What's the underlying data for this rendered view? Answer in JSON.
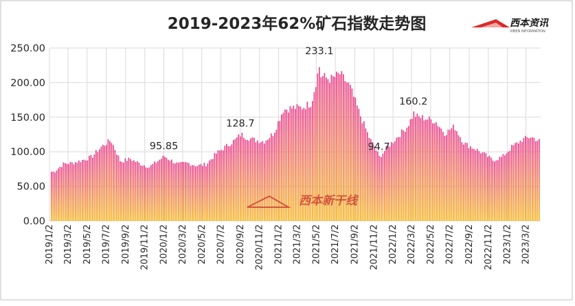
{
  "chart_data": {
    "type": "bar",
    "title": "2019-2023年62%矿石指数走势图",
    "logo_text": "西本资讯",
    "logo_subtext": "XIBEN INFORMATION",
    "watermark_text": "西本新干线",
    "xlabel": "",
    "ylabel": "",
    "ylim": [
      0,
      250
    ],
    "y_ticks": [
      "0.00",
      "50.00",
      "100.00",
      "150.00",
      "200.00",
      "250.00"
    ],
    "x_tick_labels": [
      "2019/1/2",
      "2019/3/2",
      "2019/5/2",
      "2019/7/2",
      "2019/9/2",
      "2019/11/2",
      "2020/1/2",
      "2020/3/2",
      "2020/5/2",
      "2020/7/2",
      "2020/9/2",
      "2020/11/2",
      "2021/1/2",
      "2021/3/2",
      "2021/5/2",
      "2021/7/2",
      "2021/9/2",
      "2021/11/2",
      "2022/1/2",
      "2022/3/2",
      "2022/5/2",
      "2022/7/2",
      "2022/9/2",
      "2022/11/2",
      "2023/1/2",
      "2023/3/2"
    ],
    "grid": true,
    "legend": "none",
    "colors": {
      "top": "#e8408e",
      "bottom": "#f5b51e",
      "grid": "#d9d9d9"
    },
    "annotations": [
      {
        "x": "2020/1/2",
        "y": 95.85,
        "label": "95.85"
      },
      {
        "x": "2020/9/2",
        "y": 128.7,
        "label": "128.7"
      },
      {
        "x": "2021/5/12",
        "y": 233.1,
        "label": "233.1"
      },
      {
        "x": "2021/11/18",
        "y": 94.7,
        "label": "94.7"
      },
      {
        "x": "2022/3/8",
        "y": 160.2,
        "label": "160.2"
      }
    ],
    "series": [
      {
        "x": [
          "2019/1",
          "2019/2",
          "2019/3",
          "2019/4",
          "2019/5",
          "2019/6",
          "2019/7",
          "2019/8",
          "2019/9",
          "2019/10",
          "2019/11",
          "2019/12",
          "2020/1",
          "2020/2",
          "2020/3",
          "2020/4",
          "2020/5",
          "2020/6",
          "2020/7",
          "2020/8",
          "2020/9",
          "2020/10",
          "2020/11",
          "2020/12",
          "2021/1",
          "2021/2",
          "2021/3",
          "2021/4",
          "2021/5",
          "2021/6",
          "2021/7",
          "2021/8",
          "2021/9",
          "2021/10",
          "2021/11",
          "2021/12",
          "2022/1",
          "2022/2",
          "2022/3",
          "2022/4",
          "2022/5",
          "2022/6",
          "2022/7",
          "2022/8",
          "2022/9",
          "2022/10",
          "2022/11",
          "2022/12",
          "2023/1",
          "2023/2",
          "2023/3",
          "2023/4"
        ],
        "values": [
          73,
          85,
          86,
          90,
          95,
          110,
          120,
          88,
          92,
          85,
          80,
          90,
          92,
          84,
          86,
          82,
          84,
          100,
          110,
          120,
          125,
          120,
          118,
          130,
          165,
          168,
          168,
          175,
          215,
          210,
          218,
          200,
          160,
          125,
          98,
          110,
          125,
          140,
          155,
          152,
          148,
          130,
          140,
          115,
          108,
          100,
          90,
          95,
          110,
          120,
          125,
          118
        ]
      }
    ]
  }
}
